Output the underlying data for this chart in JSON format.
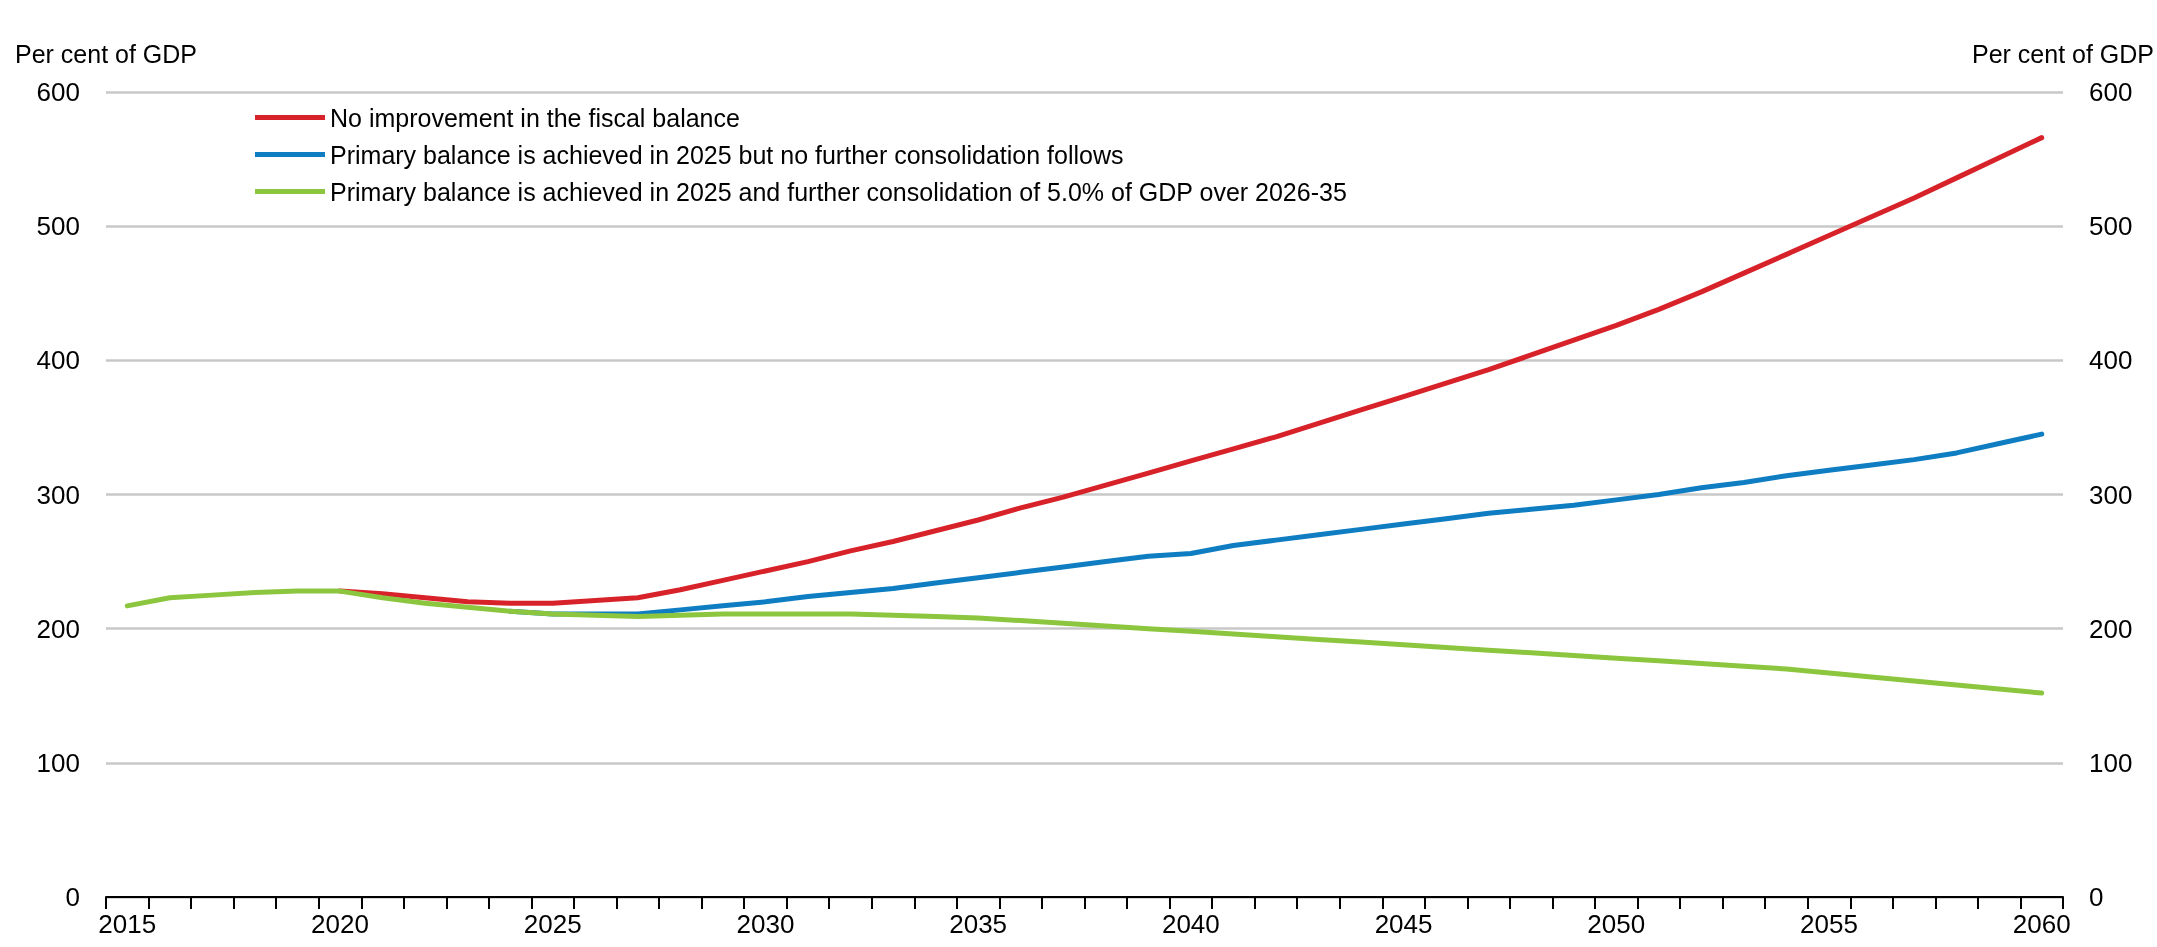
{
  "chart_data": {
    "type": "line",
    "ylabel": "Per cent of GDP",
    "y2label": "Per cent of GDP",
    "categories": [
      "2015",
      null,
      null,
      null,
      null,
      "2020",
      null,
      null,
      null,
      null,
      "2025",
      null,
      null,
      null,
      null,
      "2030",
      null,
      null,
      null,
      null,
      "2035",
      null,
      null,
      null,
      null,
      "2040",
      null,
      null,
      null,
      null,
      "2045",
      null,
      null,
      null,
      null,
      "2050",
      null,
      null,
      null,
      null,
      "2055",
      null,
      null,
      null,
      null,
      "2060"
    ],
    "series": [
      {
        "name": "No improvement in the fiscal balance",
        "color": "#d8222a",
        "values": [
          null,
          null,
          null,
          null,
          null,
          228,
          226,
          223,
          220,
          219,
          219,
          221,
          223,
          229,
          236,
          243,
          250,
          258,
          265,
          273,
          281,
          290,
          298,
          307,
          316,
          325,
          334,
          343,
          353,
          363,
          373,
          383,
          393,
          404,
          415,
          426,
          438,
          451,
          465,
          479,
          493,
          507,
          521,
          536,
          551,
          566
        ]
      },
      {
        "name": "Primary balance is achieved in 2025 but no further consolidation follows",
        "color": "#0f7dc2",
        "values": [
          null,
          null,
          null,
          null,
          null,
          null,
          null,
          null,
          null,
          213,
          211,
          211,
          211,
          214,
          217,
          220,
          224,
          227,
          230,
          234,
          238,
          242,
          246,
          250,
          254,
          256,
          262,
          266,
          270,
          274,
          278,
          282,
          286,
          289,
          292,
          296,
          300,
          305,
          309,
          314,
          318,
          322,
          326,
          331,
          338,
          345
        ]
      },
      {
        "name": "Primary balance is achieved in 2025 and further consolidation of 5.0% of GDP over 2026-35",
        "color": "#8cc63f",
        "values": [
          217,
          223,
          225,
          227,
          228,
          228,
          223,
          219,
          216,
          213,
          211,
          210,
          209,
          210,
          211,
          211,
          211,
          211,
          210,
          209,
          208,
          206,
          204,
          202,
          200,
          198,
          196,
          194,
          192,
          190,
          188,
          186,
          184,
          182,
          180,
          178,
          176,
          174,
          172,
          170,
          167,
          164,
          161,
          158,
          155,
          152
        ]
      }
    ],
    "ylim": [
      0,
      600
    ],
    "yticks": [
      0,
      100,
      200,
      300,
      400,
      500,
      600
    ],
    "y2lim": [
      0,
      600
    ],
    "y2ticks": [
      0,
      100,
      200,
      300,
      400,
      500,
      600
    ],
    "grid": "y",
    "legend": "top left",
    "marker": "none",
    "line_style": "solid"
  }
}
